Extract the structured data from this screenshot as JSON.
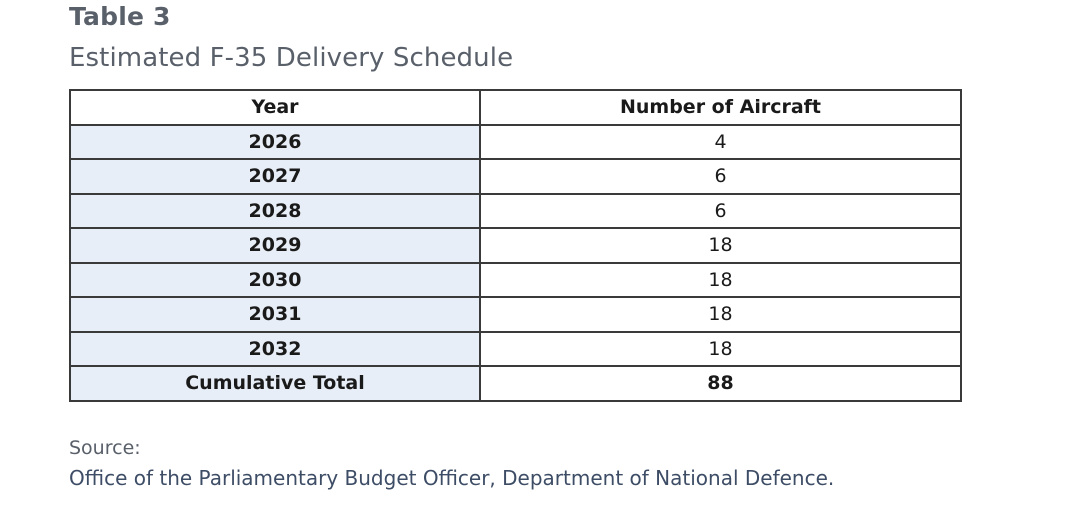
{
  "header": {
    "label": "Table 3",
    "title": "Estimated F-35 Delivery Schedule"
  },
  "table": {
    "columns": [
      "Year",
      "Number of Aircraft"
    ],
    "rows": [
      {
        "year": "2026",
        "aircraft": "4"
      },
      {
        "year": "2027",
        "aircraft": "6"
      },
      {
        "year": "2028",
        "aircraft": "6"
      },
      {
        "year": "2029",
        "aircraft": "18"
      },
      {
        "year": "2030",
        "aircraft": "18"
      },
      {
        "year": "2031",
        "aircraft": "18"
      },
      {
        "year": "2032",
        "aircraft": "18"
      }
    ],
    "total": {
      "label": "Cumulative Total",
      "aircraft": "88"
    }
  },
  "footer": {
    "source_label": "Source:",
    "source_text": "Office of the Parliamentary Budget Officer, Department of National Defence."
  },
  "colors": {
    "heading_gray": "#59606a",
    "year_cell_fill": "#e8eef7",
    "source_text": "#3e4d66",
    "border": "#3a3a3a"
  }
}
